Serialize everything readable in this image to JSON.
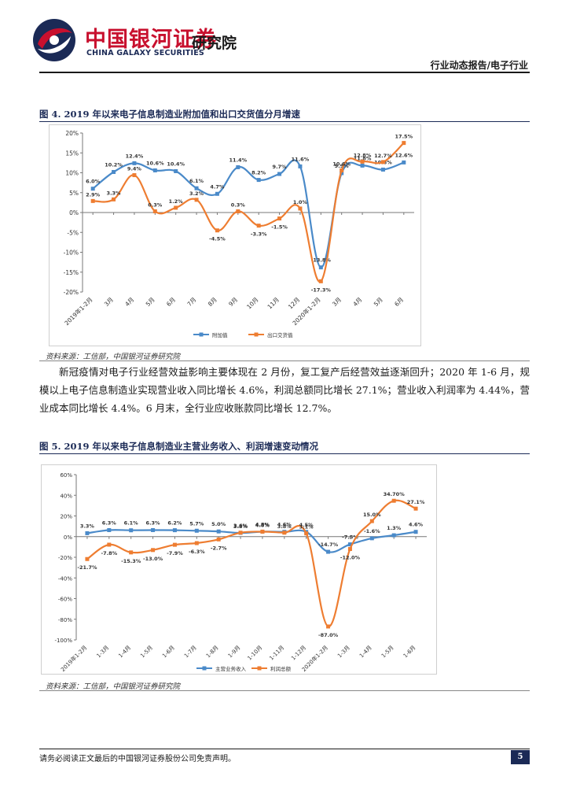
{
  "header": {
    "logo_cn": "中国银河证券",
    "logo_en": "CHINA GALAXY SECURITIES",
    "institute": "研究院",
    "report_type": "行业动态报告/电子行业"
  },
  "figure4": {
    "title": "图 4. 2019 年以来电子信息制造业附加值和出口交货值分月增速",
    "source": "资料来源：工信部，中国银河证券研究院"
  },
  "body": {
    "paragraph": "新冠疫情对电子行业经营效益影响主要体现在 2 月份，复工复产后经营效益逐渐回升；2020 年 1-6 月，规模以上电子信息制造业实现营业收入同比增长 4.6%，利润总额同比增长 27.1%；营业收入利润率为 4.44%，营业成本同比增长 4.4%。6 月末，全行业应收账款同比增长 12.7%。"
  },
  "figure5": {
    "title": "图 5. 2019 年以来电子信息制造业主营业务收入、利润增速变动情况",
    "source": "资料来源：工信部，中国银河证券研究院"
  },
  "footer": {
    "disclaimer": "请务必阅读正文最后的中国银河证券股份公司免责声明。",
    "page": "5"
  },
  "colors": {
    "blue": "#4a8ac9",
    "orange": "#ee7d31",
    "brand_red": "#c8102e",
    "brand_navy": "#1b2a56"
  },
  "chart_data": [
    {
      "type": "line",
      "categories": [
        "2019年1-2月",
        "3月",
        "4月",
        "5月",
        "6月",
        "7月",
        "8月",
        "9月",
        "10月",
        "11月",
        "12月",
        "2020年1-2月",
        "3月",
        "4月",
        "5月",
        "6月"
      ],
      "y_ticks": [
        "20%",
        "15%",
        "10%",
        "5%",
        "0%",
        "-5%",
        "-10%",
        "-15%",
        "-20%"
      ],
      "ylim": [
        -20,
        20
      ],
      "series": [
        {
          "name": "附加值",
          "color": "#4a8ac9",
          "values": [
            6.0,
            10.2,
            12.4,
            10.6,
            10.4,
            6.1,
            4.7,
            11.4,
            8.2,
            9.7,
            11.6,
            -13.8,
            9.9,
            11.8,
            10.8,
            12.6
          ],
          "labels": [
            "6.0%",
            "10.2%",
            "12.4%",
            "10.6%",
            "10.4%",
            "6.1%",
            "4.7%",
            "11.4%",
            "8.2%",
            "9.7%",
            "11.6%",
            "-13.8%",
            "9.9%",
            "11.8%",
            "10.8%",
            "12.6%"
          ]
        },
        {
          "name": "出口交货值",
          "color": "#ee7d31",
          "values": [
            2.9,
            3.3,
            9.4,
            0.3,
            1.2,
            3.2,
            -4.5,
            0.3,
            -3.3,
            -1.5,
            1.0,
            -17.3,
            10.6,
            12.8,
            12.7,
            17.5
          ],
          "labels": [
            "2.9%",
            "3.3%",
            "9.4%",
            "0.3%",
            "1.2%",
            "3.2%",
            "-4.5%",
            "0.3%",
            "-3.3%",
            "-1.5%",
            "1.0%",
            "-17.3%",
            "10.6%",
            "12.8%",
            "12.7%",
            "17.5%"
          ]
        }
      ],
      "legend_position": "bottom-center",
      "grid": false
    },
    {
      "type": "line",
      "categories": [
        "2019年1-2月",
        "1-3月",
        "1-4月",
        "1-5月",
        "1-6月",
        "1-7月",
        "1-8月",
        "1-9月",
        "1-10月",
        "1-11月",
        "1-12月",
        "2020年1-2月",
        "1-3月",
        "1-4月",
        "1-5月",
        "1-6月"
      ],
      "y_ticks": [
        "60%",
        "40%",
        "20%",
        "0%",
        "-20%",
        "-40%",
        "-60%",
        "-80%",
        "-100%"
      ],
      "ylim": [
        -100,
        60
      ],
      "series": [
        {
          "name": "主营业务收入",
          "color": "#4a8ac9",
          "values": [
            3.3,
            6.3,
            6.1,
            6.3,
            6.2,
            5.7,
            5.0,
            3.6,
            4.8,
            4.6,
            4.5,
            -14.7,
            -7.5,
            -1.6,
            1.3,
            4.6
          ],
          "labels": [
            "3.3%",
            "6.3%",
            "6.1%",
            "6.3%",
            "6.2%",
            "5.7%",
            "5.0%",
            "3.6%",
            "4.8%",
            "4.6%",
            "4.5%",
            "-14.7%",
            "-7.5%",
            "-1.6%",
            "1.3%",
            "4.6%"
          ]
        },
        {
          "name": "利润总额",
          "color": "#ee7d31",
          "values": [
            -21.7,
            -7.8,
            -15.3,
            -13.0,
            -7.9,
            -6.3,
            -2.7,
            3.8,
            4.8,
            3.8,
            3.1,
            -87.0,
            -12.0,
            15.0,
            34.7,
            27.1
          ],
          "labels": [
            "-21.7%",
            "-7.8%",
            "-15.3%",
            "-13.0%",
            "-7.9%",
            "-6.3%",
            "-2.7%",
            "3.8%",
            "4.8%",
            "3.8%",
            "3.1%",
            "-87.0%",
            "-12.0%",
            "15.0%",
            "34.70%",
            "27.1%"
          ]
        }
      ],
      "legend_position": "bottom-center",
      "grid": false
    }
  ]
}
